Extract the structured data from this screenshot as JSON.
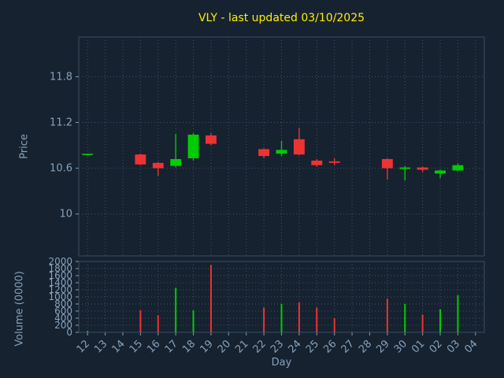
{
  "colors": {
    "background": "#162230",
    "grid": "#3e5166",
    "spine": "#3b4d61",
    "text": "#87a1bb",
    "title": "#ffee00",
    "up": "#00cc00",
    "down": "#ee3333"
  },
  "chart_data": {
    "type": "candlestick",
    "title": "VLY - last updated 03/10/2025",
    "xlabel": "Day",
    "price_ylabel": "Price",
    "volume_ylabel": "Volume (0000)",
    "x_ticklabels": [
      "12",
      "13",
      "14",
      "15",
      "16",
      "17",
      "18",
      "19",
      "20",
      "21",
      "22",
      "23",
      "24",
      "25",
      "26",
      "27",
      "28",
      "29",
      "30",
      "01",
      "02",
      "03",
      "04"
    ],
    "price_yticks": [
      10,
      10.6,
      11.2,
      11.8
    ],
    "price_ylim": [
      9.45,
      12.32
    ],
    "volume_yticks": [
      0,
      200,
      400,
      600,
      800,
      1000,
      1200,
      1400,
      1600,
      1800,
      2000
    ],
    "volume_ylim": [
      0,
      2000
    ],
    "grid": "dotted",
    "candles": [
      {
        "day": "12",
        "open": 10.78,
        "high": 10.79,
        "low": 10.77,
        "close": 10.79,
        "volume": 40,
        "direction": "up"
      },
      {
        "day": "15",
        "open": 10.78,
        "high": 10.79,
        "low": 10.64,
        "close": 10.65,
        "volume": 620,
        "direction": "down"
      },
      {
        "day": "16",
        "open": 10.67,
        "high": 10.68,
        "low": 10.5,
        "close": 10.6,
        "volume": 480,
        "direction": "down"
      },
      {
        "day": "17",
        "open": 10.63,
        "high": 11.05,
        "low": 10.61,
        "close": 10.72,
        "volume": 1250,
        "direction": "up"
      },
      {
        "day": "18",
        "open": 10.73,
        "high": 11.06,
        "low": 10.7,
        "close": 11.04,
        "volume": 620,
        "direction": "up"
      },
      {
        "day": "19",
        "open": 11.03,
        "high": 11.06,
        "low": 10.9,
        "close": 10.92,
        "volume": 1900,
        "direction": "down"
      },
      {
        "day": "22",
        "open": 10.85,
        "high": 10.86,
        "low": 10.73,
        "close": 10.76,
        "volume": 700,
        "direction": "down"
      },
      {
        "day": "23",
        "open": 10.79,
        "high": 10.96,
        "low": 10.76,
        "close": 10.84,
        "volume": 800,
        "direction": "up"
      },
      {
        "day": "24",
        "open": 10.98,
        "high": 11.13,
        "low": 10.77,
        "close": 10.78,
        "volume": 850,
        "direction": "down"
      },
      {
        "day": "25",
        "open": 10.7,
        "high": 10.72,
        "low": 10.62,
        "close": 10.64,
        "volume": 700,
        "direction": "down"
      },
      {
        "day": "26",
        "open": 10.69,
        "high": 10.73,
        "low": 10.64,
        "close": 10.67,
        "volume": 400,
        "direction": "down"
      },
      {
        "day": "29",
        "open": 10.72,
        "high": 10.73,
        "low": 10.45,
        "close": 10.6,
        "volume": 950,
        "direction": "down"
      },
      {
        "day": "30",
        "open": 10.59,
        "high": 10.63,
        "low": 10.44,
        "close": 10.61,
        "volume": 800,
        "direction": "up"
      },
      {
        "day": "01",
        "open": 10.61,
        "high": 10.62,
        "low": 10.55,
        "close": 10.58,
        "volume": 500,
        "direction": "down"
      },
      {
        "day": "02",
        "open": 10.53,
        "high": 10.58,
        "low": 10.47,
        "close": 10.57,
        "volume": 650,
        "direction": "up"
      },
      {
        "day": "03",
        "open": 10.57,
        "high": 10.66,
        "low": 10.56,
        "close": 10.64,
        "volume": 1050,
        "direction": "up"
      }
    ]
  }
}
